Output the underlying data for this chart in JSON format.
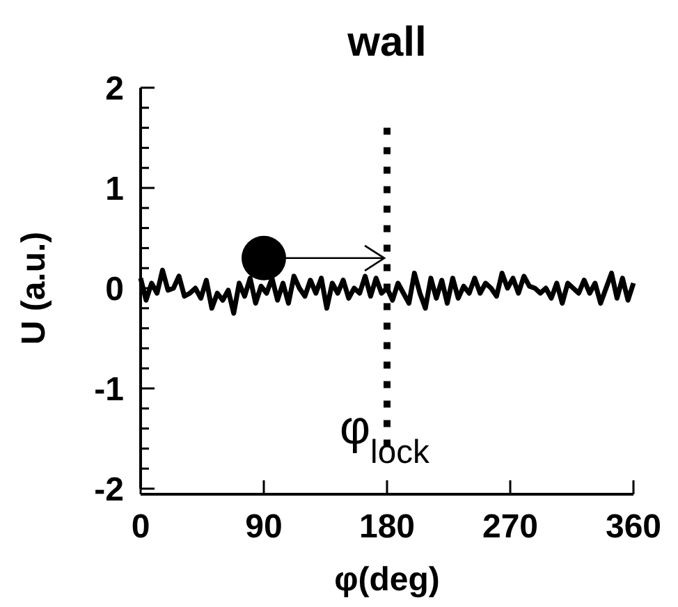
{
  "chart_data": {
    "type": "line",
    "title": "wall",
    "xlabel": "φ(deg)",
    "ylabel": "U (a.u.)",
    "xlim": [
      0,
      360
    ],
    "xticks": [
      0,
      90,
      180,
      270,
      360
    ],
    "ylim": [
      -2,
      2
    ],
    "yticks": [
      -2,
      {
        "value": -1.8,
        "label": null
      },
      {
        "value": -1.6,
        "label": null
      },
      {
        "value": -1.4,
        "label": null
      },
      {
        "value": -1.2,
        "label": null
      },
      -1,
      {
        "value": -0.8,
        "label": null
      },
      {
        "value": -0.6,
        "label": null
      },
      {
        "value": -0.4,
        "label": null
      },
      {
        "value": -0.2,
        "label": null
      },
      0,
      {
        "value": 0.2,
        "label": null
      },
      {
        "value": 0.4,
        "label": null
      },
      {
        "value": 0.6,
        "label": null
      },
      {
        "value": 0.8,
        "label": null
      },
      1,
      {
        "value": 1.2,
        "label": null
      },
      {
        "value": 1.4,
        "label": null
      },
      {
        "value": 1.6,
        "label": null
      },
      {
        "value": 1.8,
        "label": null
      },
      2
    ],
    "grid": false,
    "marker": "none",
    "line_style": "solid",
    "ref_lines": [
      {
        "axis": "x",
        "value": 180,
        "label": "φ$_{lock}$",
        "color": "#000000",
        "line_style": "dotted"
      }
    ],
    "x": [
      0,
      4,
      8,
      12,
      16,
      20,
      24,
      28,
      32,
      36,
      40,
      44,
      48,
      52,
      56,
      60,
      64,
      68,
      72,
      76,
      80,
      84,
      88,
      92,
      96,
      100,
      104,
      108,
      112,
      116,
      120,
      124,
      128,
      132,
      136,
      140,
      144,
      148,
      152,
      156,
      160,
      164,
      168,
      172,
      176,
      180,
      184,
      188,
      192,
      196,
      200,
      204,
      208,
      212,
      216,
      220,
      224,
      228,
      232,
      236,
      240,
      244,
      248,
      252,
      256,
      260,
      264,
      268,
      272,
      276,
      280,
      284,
      288,
      292,
      296,
      300,
      304,
      308,
      312,
      316,
      320,
      324,
      328,
      332,
      336,
      340,
      344,
      348,
      352,
      356,
      360
    ],
    "series": [
      {
        "color": "#000000",
        "values": [
          0.1,
          -0.12,
          0.05,
          -0.05,
          0.18,
          -0.02,
          0.0,
          0.12,
          -0.08,
          -0.05,
          0.0,
          -0.1,
          0.08,
          -0.2,
          -0.05,
          -0.12,
          -0.02,
          -0.25,
          0.05,
          -0.08,
          0.1,
          -0.15,
          0.02,
          -0.05,
          0.1,
          -0.12,
          0.05,
          -0.15,
          0.12,
          0.0,
          -0.08,
          0.08,
          -0.05,
          0.1,
          -0.2,
          0.05,
          -0.05,
          0.08,
          -0.1,
          0.0,
          -0.05,
          0.12,
          -0.08,
          0.1,
          -0.05,
          0.0,
          -0.12,
          0.05,
          -0.05,
          -0.15,
          0.15,
          -0.05,
          -0.2,
          0.1,
          -0.1,
          0.08,
          -0.15,
          0.1,
          -0.1,
          0.02,
          -0.05,
          0.1,
          -0.05,
          0.05,
          0.0,
          -0.08,
          0.15,
          0.0,
          0.1,
          -0.05,
          0.12,
          0.02,
          0.0,
          -0.05,
          0.0,
          -0.1,
          0.05,
          -0.15,
          0.05,
          0.0,
          -0.05,
          0.08,
          -0.05,
          0.05,
          -0.15,
          0.0,
          0.15,
          -0.1,
          0.1,
          -0.12,
          0.05
        ]
      }
    ]
  }
}
